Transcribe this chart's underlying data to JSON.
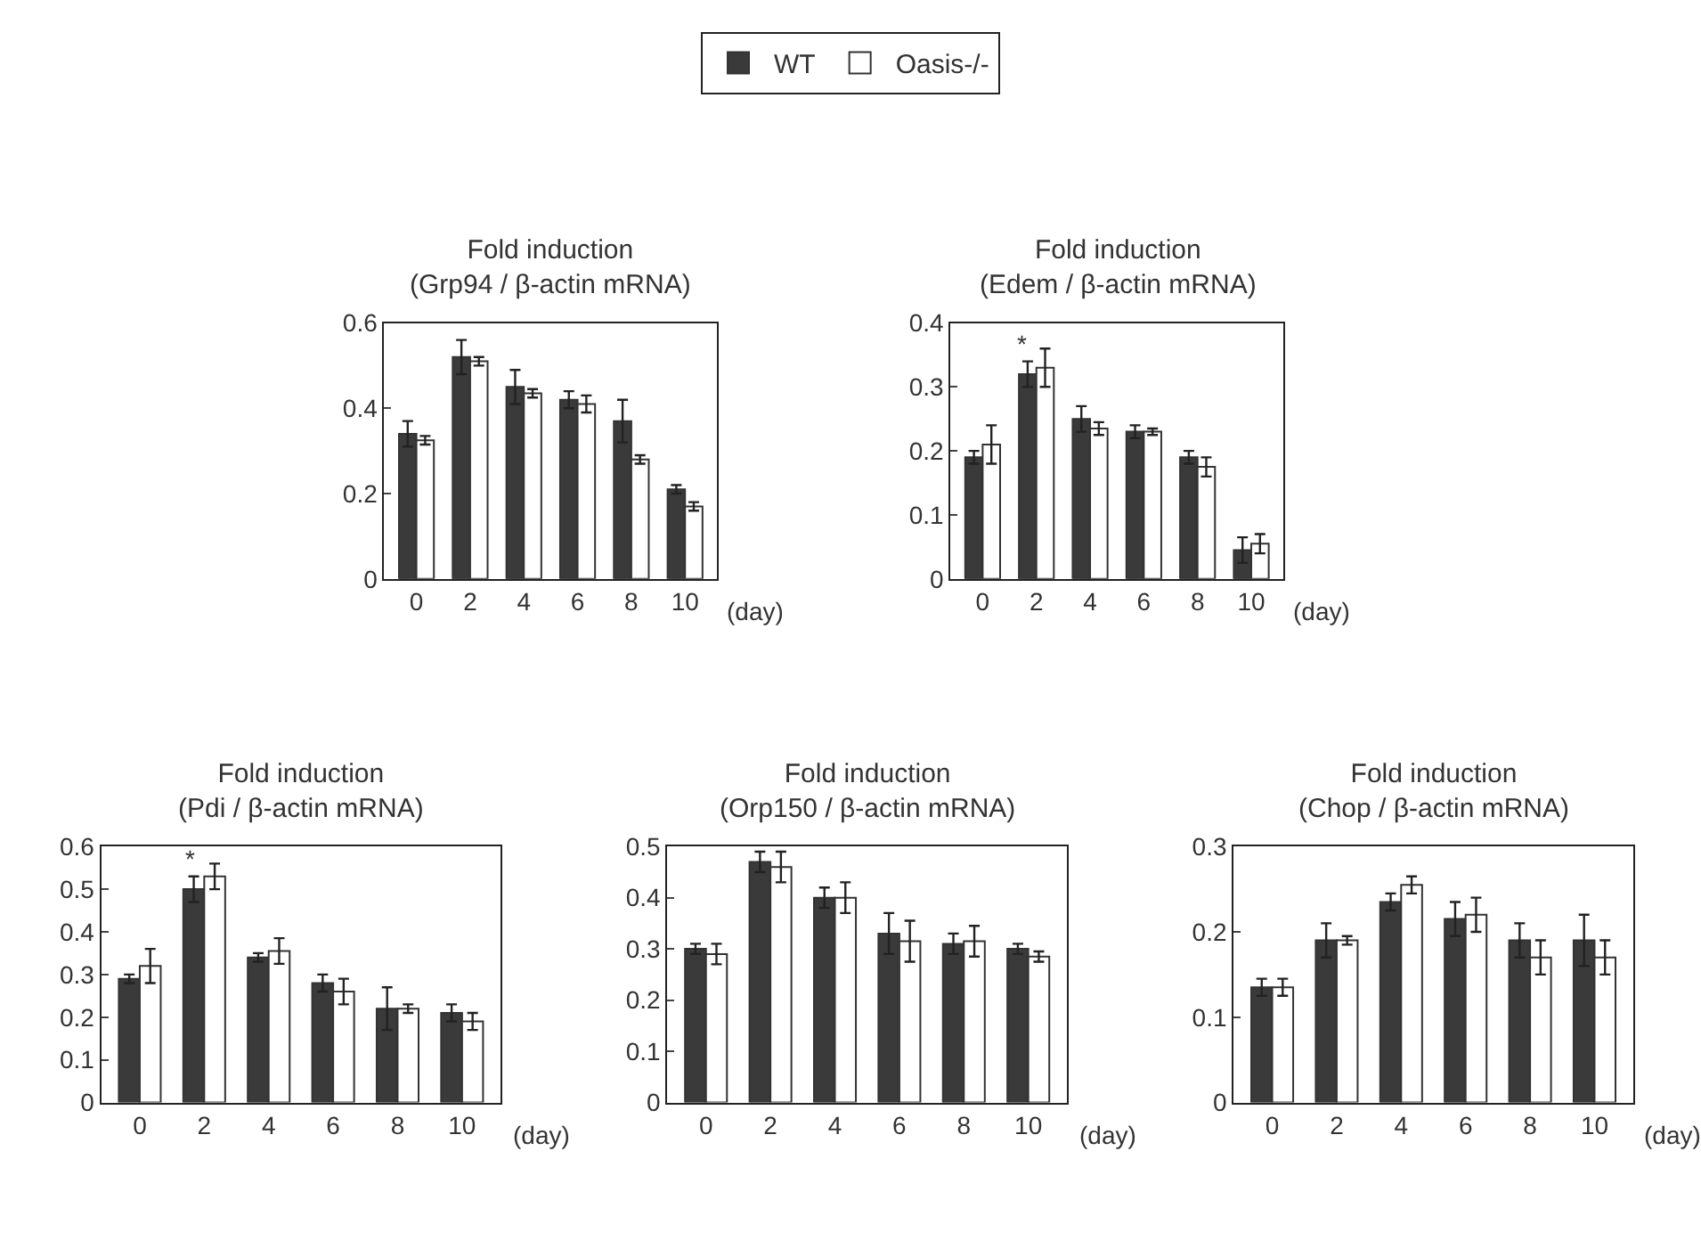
{
  "chart_data": [
    {
      "type": "bar",
      "title": "Fold induction\n(Grp94 / β-actin mRNA)",
      "xlabel": "(day)",
      "categories": [
        "0",
        "2",
        "4",
        "6",
        "8",
        "10"
      ],
      "legend": "top",
      "series": [
        {
          "name": "WT",
          "color": "#3a3a3a",
          "values": [
            0.34,
            0.52,
            0.45,
            0.42,
            0.37,
            0.21
          ],
          "errors": [
            0.03,
            0.04,
            0.04,
            0.02,
            0.05,
            0.01
          ]
        },
        {
          "name": "Oasis-/-",
          "color": "#ffffff",
          "values": [
            0.325,
            0.51,
            0.435,
            0.41,
            0.28,
            0.17
          ],
          "errors": [
            0.01,
            0.01,
            0.01,
            0.02,
            0.01,
            0.01
          ]
        }
      ],
      "ylim": [
        0,
        0.6
      ],
      "yticks": [
        0,
        0.2,
        0.4,
        0.6
      ]
    },
    {
      "type": "bar",
      "title": "Fold induction\n(Edem / β-actin mRNA)",
      "xlabel": "(day)",
      "categories": [
        "0",
        "2",
        "4",
        "6",
        "8",
        "10"
      ],
      "series": [
        {
          "color": "#3a3a3a",
          "values": [
            0.19,
            0.32,
            0.25,
            0.23,
            0.19,
            0.045
          ],
          "errors": [
            0.01,
            0.02,
            0.02,
            0.01,
            0.01,
            0.02
          ]
        },
        {
          "color": "#ffffff",
          "values": [
            0.21,
            0.33,
            0.235,
            0.23,
            0.175,
            0.055
          ],
          "errors": [
            0.03,
            0.03,
            0.01,
            0.005,
            0.015,
            0.015
          ]
        }
      ],
      "ylim": [
        0,
        0.4
      ],
      "yticks": [
        0,
        0.1,
        0.2,
        0.3,
        0.4
      ],
      "annotations": [
        {
          "text": "*",
          "x": "2",
          "y": 0.34
        }
      ]
    },
    {
      "type": "bar",
      "title": "Fold induction\n(Pdi / β-actin mRNA)",
      "xlabel": "(day)",
      "categories": [
        "0",
        "2",
        "4",
        "6",
        "8",
        "10"
      ],
      "series": [
        {
          "color": "#3a3a3a",
          "values": [
            0.29,
            0.5,
            0.34,
            0.28,
            0.22,
            0.21
          ],
          "errors": [
            0.01,
            0.03,
            0.01,
            0.02,
            0.05,
            0.02
          ]
        },
        {
          "color": "#ffffff",
          "values": [
            0.32,
            0.53,
            0.355,
            0.26,
            0.22,
            0.19
          ],
          "errors": [
            0.04,
            0.03,
            0.03,
            0.03,
            0.01,
            0.02
          ]
        }
      ],
      "ylim": [
        0,
        0.6
      ],
      "yticks": [
        0,
        0.1,
        0.2,
        0.3,
        0.4,
        0.5,
        0.6
      ],
      "annotations": [
        {
          "text": "*",
          "x": "2",
          "y": 0.53
        }
      ]
    },
    {
      "type": "bar",
      "title": "Fold induction\n(Orp150 / β-actin mRNA)",
      "xlabel": "(day)",
      "categories": [
        "0",
        "2",
        "4",
        "6",
        "8",
        "10"
      ],
      "series": [
        {
          "color": "#3a3a3a",
          "values": [
            0.3,
            0.47,
            0.4,
            0.33,
            0.31,
            0.3
          ],
          "errors": [
            0.01,
            0.02,
            0.02,
            0.04,
            0.02,
            0.01
          ]
        },
        {
          "color": "#ffffff",
          "values": [
            0.29,
            0.46,
            0.4,
            0.315,
            0.315,
            0.285
          ],
          "errors": [
            0.02,
            0.03,
            0.03,
            0.04,
            0.03,
            0.01
          ]
        }
      ],
      "ylim": [
        0,
        0.5
      ],
      "yticks": [
        0,
        0.1,
        0.2,
        0.3,
        0.4,
        0.5
      ]
    },
    {
      "type": "bar",
      "title": "Fold induction\n(Chop / β-actin mRNA)",
      "xlabel": "(day)",
      "categories": [
        "0",
        "2",
        "4",
        "6",
        "8",
        "10"
      ],
      "series": [
        {
          "color": "#3a3a3a",
          "values": [
            0.135,
            0.19,
            0.235,
            0.215,
            0.19,
            0.19
          ],
          "errors": [
            0.01,
            0.02,
            0.01,
            0.02,
            0.02,
            0.03
          ]
        },
        {
          "color": "#ffffff",
          "values": [
            0.135,
            0.19,
            0.255,
            0.22,
            0.17,
            0.17
          ],
          "errors": [
            0.01,
            0.005,
            0.01,
            0.02,
            0.02,
            0.02
          ]
        }
      ],
      "ylim": [
        0,
        0.3
      ],
      "yticks": [
        0,
        0.1,
        0.2,
        0.3
      ]
    }
  ]
}
